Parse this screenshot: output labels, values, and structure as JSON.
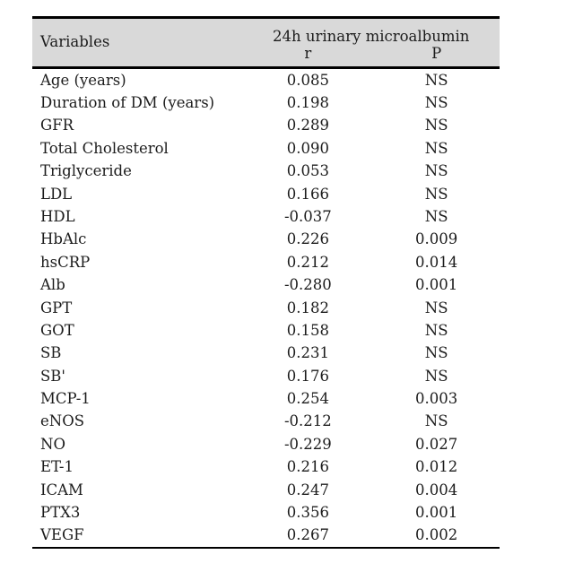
{
  "colors": {
    "page_bg": "#ffffff",
    "header_bg": "#d9d9d9",
    "border": "#000000",
    "text": "#1c1c1c"
  },
  "table": {
    "header": {
      "variables_label": "Variables",
      "group_label": "24h urinary microalbumin",
      "r_label": "r",
      "p_label": "P"
    },
    "rows": [
      {
        "variable": "Age (years)",
        "r": "0.085",
        "p": "NS"
      },
      {
        "variable": "Duration of DM (years)",
        "r": "0.198",
        "p": "NS"
      },
      {
        "variable": "GFR",
        "r": "0.289",
        "p": "NS"
      },
      {
        "variable": "Total Cholesterol",
        "r": "0.090",
        "p": "NS"
      },
      {
        "variable": "Triglyceride",
        "r": "0.053",
        "p": "NS"
      },
      {
        "variable": "LDL",
        "r": "0.166",
        "p": "NS"
      },
      {
        "variable": "HDL",
        "r": "-0.037",
        "p": "NS"
      },
      {
        "variable": "HbAlc",
        "r": "0.226",
        "p": "0.009"
      },
      {
        "variable": "hsCRP",
        "r": "0.212",
        "p": "0.014"
      },
      {
        "variable": "Alb",
        "r": "-0.280",
        "p": "0.001"
      },
      {
        "variable": "GPT",
        "r": "0.182",
        "p": "NS"
      },
      {
        "variable": "GOT",
        "r": "0.158",
        "p": "NS"
      },
      {
        "variable": "SB",
        "r": "0.231",
        "p": "NS"
      },
      {
        "variable": "SB'",
        "r": "0.176",
        "p": "NS"
      },
      {
        "variable": "MCP-1",
        "r": "0.254",
        "p": "0.003"
      },
      {
        "variable": "eNOS",
        "r": "-0.212",
        "p": "NS"
      },
      {
        "variable": "NO",
        "r": "-0.229",
        "p": "0.027"
      },
      {
        "variable": "ET-1",
        "r": "0.216",
        "p": "0.012"
      },
      {
        "variable": "ICAM",
        "r": "0.247",
        "p": "0.004"
      },
      {
        "variable": "PTX3",
        "r": "0.356",
        "p": "0.001"
      },
      {
        "variable": "VEGF",
        "r": "0.267",
        "p": "0.002"
      }
    ]
  },
  "chart_data": {
    "type": "table",
    "title": "Correlation with 24h urinary microalbumin",
    "columns": [
      "Variables",
      "r",
      "P"
    ],
    "rows": [
      [
        "Age (years)",
        "0.085",
        "NS"
      ],
      [
        "Duration of DM (years)",
        "0.198",
        "NS"
      ],
      [
        "GFR",
        "0.289",
        "NS"
      ],
      [
        "Total Cholesterol",
        "0.090",
        "NS"
      ],
      [
        "Triglyceride",
        "0.053",
        "NS"
      ],
      [
        "LDL",
        "0.166",
        "NS"
      ],
      [
        "HDL",
        "-0.037",
        "NS"
      ],
      [
        "HbAlc",
        "0.226",
        "0.009"
      ],
      [
        "hsCRP",
        "0.212",
        "0.014"
      ],
      [
        "Alb",
        "-0.280",
        "0.001"
      ],
      [
        "GPT",
        "0.182",
        "NS"
      ],
      [
        "GOT",
        "0.158",
        "NS"
      ],
      [
        "SB",
        "0.231",
        "NS"
      ],
      [
        "SB'",
        "0.176",
        "NS"
      ],
      [
        "MCP-1",
        "0.254",
        "0.003"
      ],
      [
        "eNOS",
        "-0.212",
        "NS"
      ],
      [
        "NO",
        "-0.229",
        "0.027"
      ],
      [
        "ET-1",
        "0.216",
        "0.012"
      ],
      [
        "ICAM",
        "0.247",
        "0.004"
      ],
      [
        "PTX3",
        "0.356",
        "0.001"
      ],
      [
        "VEGF",
        "0.267",
        "0.002"
      ]
    ]
  }
}
